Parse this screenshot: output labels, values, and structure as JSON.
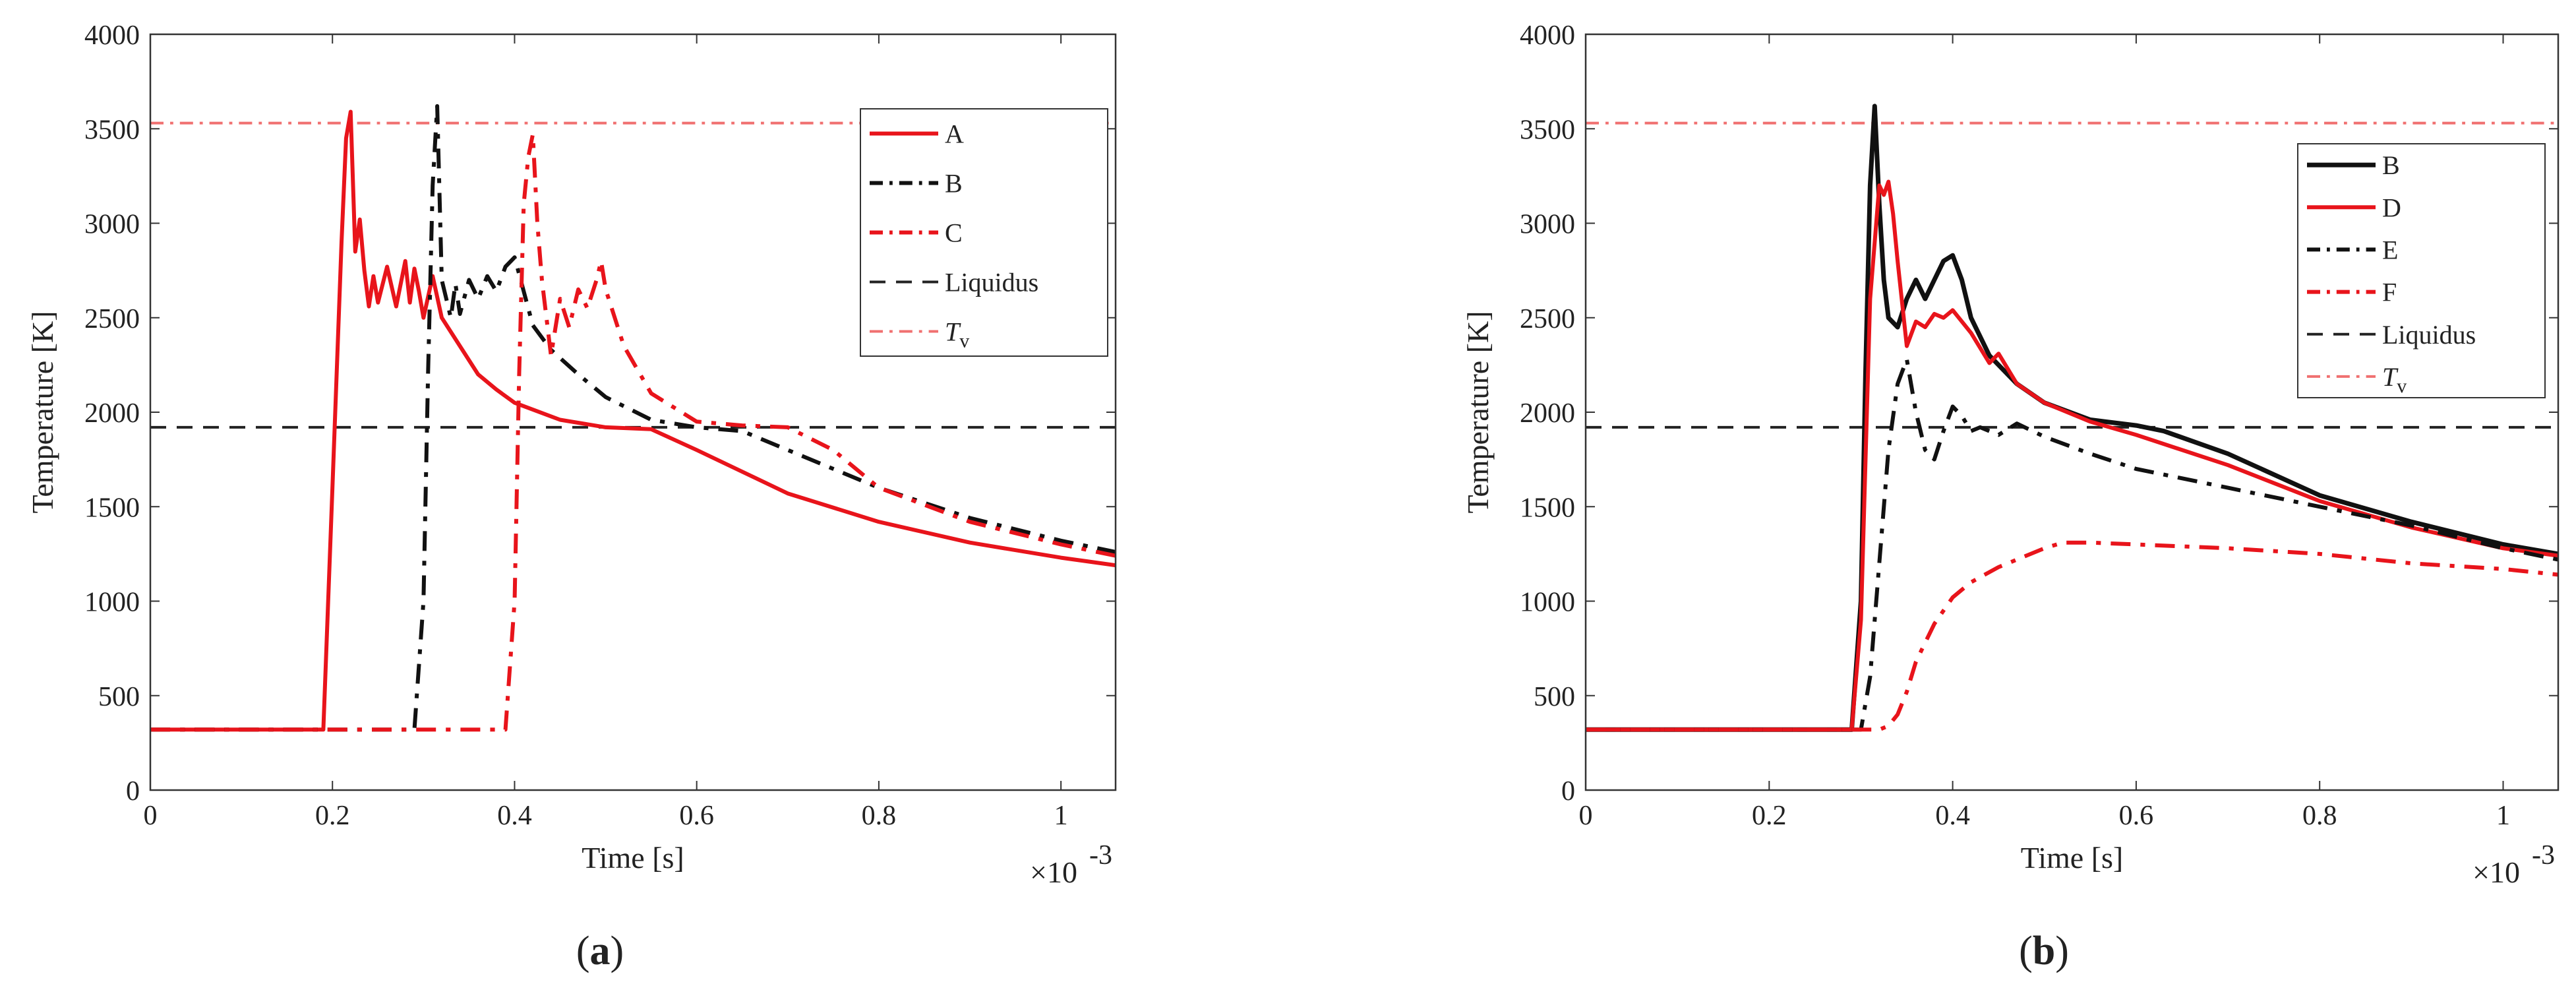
{
  "chart_data": [
    {
      "type": "line",
      "panel_label": "a",
      "xlabel": "Time [s]",
      "ylabel": "Temperature [K]",
      "x_multiplier": "×10",
      "x_multiplier_exp": "-3",
      "xlim": [
        0,
        1.06
      ],
      "ylim": [
        0,
        4000
      ],
      "xticks": [
        0,
        0.2,
        0.4,
        0.6,
        0.8,
        1
      ],
      "xtick_labels": [
        "0",
        "0.2",
        "0.4",
        "0.6",
        "0.8",
        "1"
      ],
      "yticks": [
        0,
        500,
        1000,
        1500,
        2000,
        2500,
        3000,
        3500,
        4000
      ],
      "ytick_labels": [
        "0",
        "500",
        "1000",
        "1500",
        "2000",
        "2500",
        "3000",
        "3500",
        "4000"
      ],
      "legend_position": "top-right",
      "series": [
        {
          "name": "A",
          "color": "#e8141b",
          "style": "solid",
          "width": 6,
          "x": [
            0,
            0.19,
            0.2,
            0.21,
            0.215,
            0.22,
            0.225,
            0.23,
            0.235,
            0.24,
            0.245,
            0.25,
            0.26,
            0.27,
            0.28,
            0.285,
            0.29,
            0.295,
            0.3,
            0.31,
            0.32,
            0.34,
            0.36,
            0.38,
            0.4,
            0.45,
            0.5,
            0.55,
            0.6,
            0.7,
            0.8,
            0.9,
            1.0,
            1.06
          ],
          "y": [
            320,
            320,
            1600,
            2900,
            3450,
            3590,
            2850,
            3020,
            2750,
            2560,
            2720,
            2580,
            2770,
            2560,
            2800,
            2580,
            2760,
            2640,
            2500,
            2720,
            2500,
            2350,
            2200,
            2120,
            2050,
            1960,
            1920,
            1910,
            1800,
            1570,
            1420,
            1310,
            1230,
            1190
          ]
        },
        {
          "name": "B",
          "color": "#111111",
          "style": "dashdot",
          "width": 6,
          "x": [
            0,
            0.29,
            0.3,
            0.305,
            0.31,
            0.315,
            0.32,
            0.33,
            0.335,
            0.34,
            0.35,
            0.36,
            0.37,
            0.38,
            0.39,
            0.4,
            0.41,
            0.42,
            0.44,
            0.47,
            0.5,
            0.55,
            0.6,
            0.65,
            0.7,
            0.8,
            0.9,
            1.0,
            1.06
          ],
          "y": [
            320,
            320,
            1000,
            2200,
            3200,
            3620,
            2700,
            2500,
            2680,
            2520,
            2700,
            2600,
            2720,
            2640,
            2770,
            2820,
            2640,
            2460,
            2330,
            2200,
            2080,
            1960,
            1920,
            1900,
            1800,
            1600,
            1440,
            1320,
            1260
          ]
        },
        {
          "name": "C",
          "color": "#e8141b",
          "style": "dashdot",
          "width": 6,
          "x": [
            0,
            0.39,
            0.4,
            0.405,
            0.41,
            0.415,
            0.42,
            0.425,
            0.43,
            0.44,
            0.45,
            0.46,
            0.47,
            0.48,
            0.49,
            0.495,
            0.5,
            0.52,
            0.55,
            0.6,
            0.65,
            0.7,
            0.75,
            0.8,
            0.9,
            1.0,
            1.06
          ],
          "y": [
            320,
            320,
            1000,
            2200,
            3100,
            3350,
            3470,
            3000,
            2700,
            2300,
            2600,
            2450,
            2650,
            2550,
            2700,
            2800,
            2650,
            2350,
            2100,
            1950,
            1930,
            1920,
            1800,
            1600,
            1420,
            1300,
            1240
          ]
        }
      ],
      "reference_lines": [
        {
          "name": "Liquidus",
          "value": 1920,
          "color": "#222222",
          "style": "dashed"
        },
        {
          "name": "T",
          "name_sub": "v",
          "value": 3530,
          "color": "#f07070",
          "style": "dashdot"
        }
      ]
    },
    {
      "type": "line",
      "panel_label": "b",
      "xlabel": "Time [s]",
      "ylabel": "Temperature [K]",
      "x_multiplier": "×10",
      "x_multiplier_exp": "-3",
      "xlim": [
        0,
        1.06
      ],
      "ylim": [
        0,
        4000
      ],
      "xticks": [
        0,
        0.2,
        0.4,
        0.6,
        0.8,
        1
      ],
      "xtick_labels": [
        "0",
        "0.2",
        "0.4",
        "0.6",
        "0.8",
        "1"
      ],
      "yticks": [
        0,
        500,
        1000,
        1500,
        2000,
        2500,
        3000,
        3500,
        4000
      ],
      "ytick_labels": [
        "0",
        "500",
        "1000",
        "1500",
        "2000",
        "2500",
        "3000",
        "3500",
        "4000"
      ],
      "legend_position": "top-right",
      "series": [
        {
          "name": "B",
          "color": "#111111",
          "style": "solid",
          "width": 7,
          "x": [
            0,
            0.29,
            0.3,
            0.305,
            0.31,
            0.315,
            0.32,
            0.325,
            0.33,
            0.34,
            0.35,
            0.36,
            0.37,
            0.38,
            0.39,
            0.4,
            0.41,
            0.42,
            0.44,
            0.47,
            0.5,
            0.55,
            0.6,
            0.63,
            0.7,
            0.8,
            0.9,
            1.0,
            1.06
          ],
          "y": [
            320,
            320,
            1000,
            2200,
            3200,
            3620,
            3100,
            2700,
            2500,
            2450,
            2600,
            2700,
            2600,
            2700,
            2800,
            2830,
            2700,
            2500,
            2300,
            2150,
            2050,
            1960,
            1930,
            1900,
            1780,
            1560,
            1420,
            1300,
            1250
          ]
        },
        {
          "name": "D",
          "color": "#e8141b",
          "style": "solid",
          "width": 6,
          "x": [
            0,
            0.29,
            0.3,
            0.31,
            0.32,
            0.325,
            0.33,
            0.335,
            0.34,
            0.35,
            0.36,
            0.37,
            0.38,
            0.39,
            0.4,
            0.42,
            0.44,
            0.45,
            0.47,
            0.5,
            0.55,
            0.6,
            0.7,
            0.8,
            0.9,
            1.0,
            1.06
          ],
          "y": [
            320,
            320,
            900,
            2600,
            3200,
            3150,
            3220,
            3050,
            2800,
            2350,
            2480,
            2450,
            2520,
            2500,
            2540,
            2420,
            2260,
            2310,
            2150,
            2050,
            1950,
            1880,
            1720,
            1530,
            1390,
            1280,
            1240
          ]
        },
        {
          "name": "E",
          "color": "#111111",
          "style": "dashdot",
          "width": 6,
          "x": [
            0,
            0.3,
            0.31,
            0.32,
            0.33,
            0.34,
            0.35,
            0.36,
            0.37,
            0.38,
            0.39,
            0.4,
            0.41,
            0.42,
            0.43,
            0.45,
            0.47,
            0.5,
            0.55,
            0.6,
            0.7,
            0.8,
            0.9,
            1.0,
            1.06
          ],
          "y": [
            320,
            320,
            600,
            1200,
            1800,
            2150,
            2280,
            2000,
            1800,
            1750,
            1900,
            2030,
            1980,
            1900,
            1920,
            1880,
            1940,
            1870,
            1780,
            1700,
            1600,
            1500,
            1400,
            1280,
            1220
          ]
        },
        {
          "name": "F",
          "color": "#e8141b",
          "style": "dashdot",
          "width": 6,
          "x": [
            0,
            0.32,
            0.33,
            0.34,
            0.35,
            0.36,
            0.38,
            0.4,
            0.42,
            0.45,
            0.5,
            0.52,
            0.55,
            0.6,
            0.7,
            0.8,
            0.9,
            1.0,
            1.06
          ],
          "y": [
            320,
            320,
            340,
            400,
            520,
            680,
            880,
            1020,
            1100,
            1180,
            1280,
            1310,
            1310,
            1300,
            1280,
            1250,
            1200,
            1170,
            1140
          ]
        }
      ],
      "reference_lines": [
        {
          "name": "Liquidus",
          "value": 1920,
          "color": "#222222",
          "style": "dashed"
        },
        {
          "name": "T",
          "name_sub": "v",
          "value": 3530,
          "color": "#f07070",
          "style": "dashdot"
        }
      ]
    }
  ]
}
